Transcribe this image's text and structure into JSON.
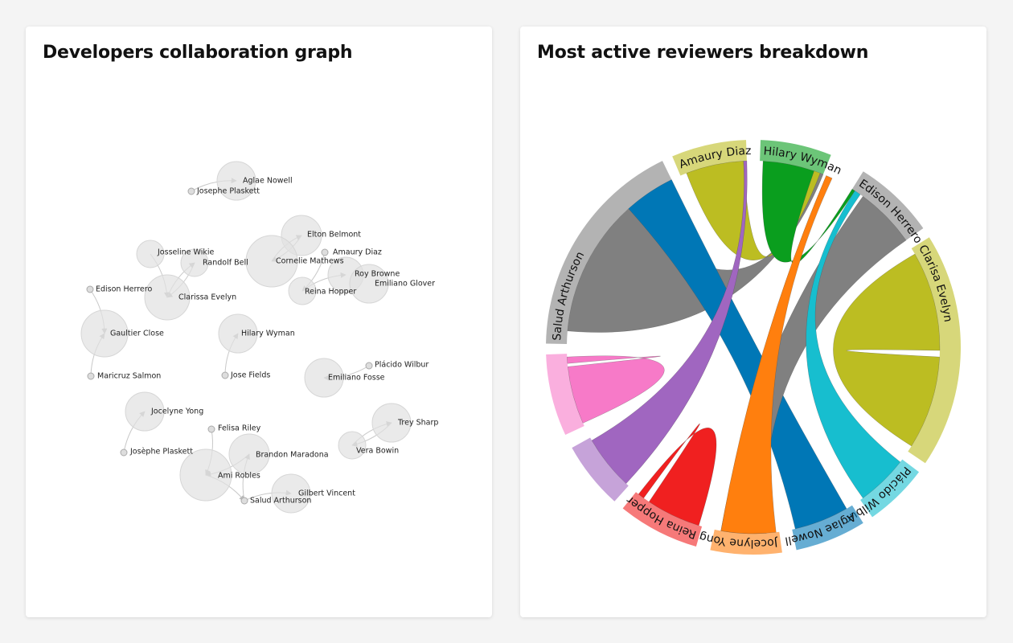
{
  "panels": [
    {
      "title": "Developers collaboration graph",
      "nodes": [
        {
          "label": "Aglae Nowell"
        },
        {
          "label": "Josephe Plaskett"
        },
        {
          "label": "Elton Belmont"
        },
        {
          "label": "Amaury Diaz"
        },
        {
          "label": "Cornelie Mathews"
        },
        {
          "label": "Josseline Wikie"
        },
        {
          "label": "Randolf Bell"
        },
        {
          "label": "Roy Browne"
        },
        {
          "label": "Emiliano Glover"
        },
        {
          "label": "Reina Hopper"
        },
        {
          "label": "Edison Herrero"
        },
        {
          "label": "Clarissa Evelyn"
        },
        {
          "label": "Gaultier Close"
        },
        {
          "label": "Hilary Wyman"
        },
        {
          "label": "Plácido Wilbur"
        },
        {
          "label": "Maricruz Salmon"
        },
        {
          "label": "Jose Fields"
        },
        {
          "label": "Emiliano Fosse"
        },
        {
          "label": "Jocelyne Yong"
        },
        {
          "label": "Trey Sharp"
        },
        {
          "label": "Felisa Riley"
        },
        {
          "label": "Josèphe Plaskett"
        },
        {
          "label": "Vera Bowin"
        },
        {
          "label": "Brandon Maradona"
        },
        {
          "label": "Ami Robles"
        },
        {
          "label": "Gilbert Vincent"
        },
        {
          "label": "Salud Arthurson"
        }
      ]
    },
    {
      "title": "Most active reviewers breakdown",
      "groups": [
        {
          "label": "Hilary Wyman",
          "color": "#0a9e1e"
        },
        {
          "label": "Edison Herrero",
          "color": "#808080"
        },
        {
          "label": "Clarisa Evelyn",
          "color": "#bcbd22"
        },
        {
          "label": "Plácido Wilbur",
          "color": "#17becf"
        },
        {
          "label": "Aglae Nowell",
          "color": "#0077b6"
        },
        {
          "label": "Jocelyne Yong",
          "color": "#ff7f0e"
        },
        {
          "label": "Reina Hopper",
          "color": "#f02020"
        },
        {
          "color": "#a066c0"
        },
        {
          "color": "#f77ac8"
        },
        {
          "label": "Salud Arthurson",
          "color": "#808080"
        },
        {
          "label": "Amaury Diaz",
          "color": "#bcbd22"
        }
      ]
    }
  ]
}
